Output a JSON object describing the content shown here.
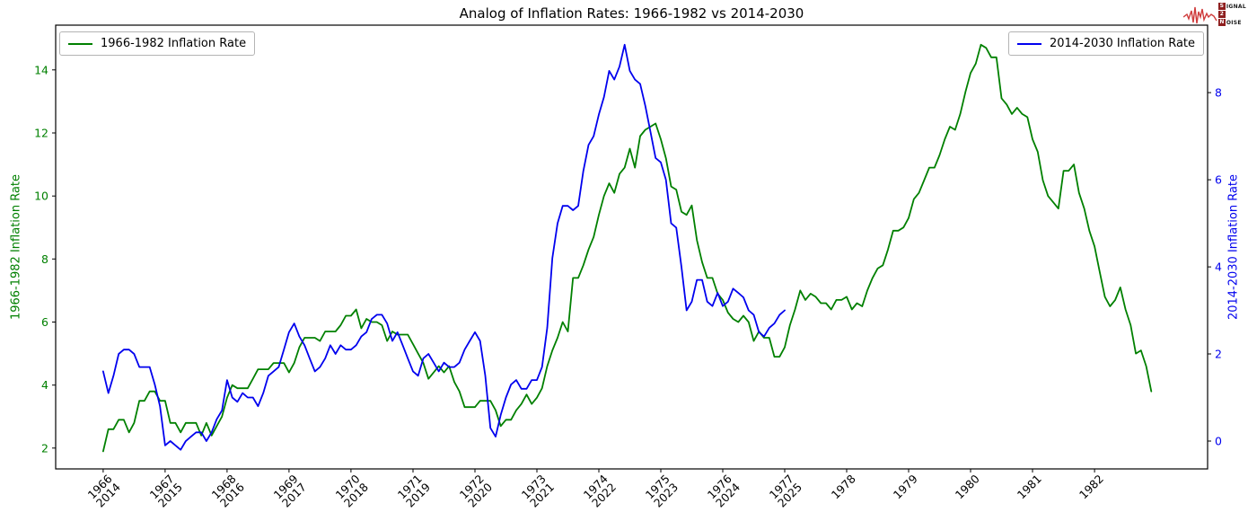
{
  "logo": {
    "text": "SIGNAL 2 NOISE",
    "rows": [
      {
        "initial": "S",
        "rest": "IGNAL"
      },
      {
        "initial": "2",
        "rest": ""
      },
      {
        "initial": "N",
        "rest": "OISE"
      }
    ],
    "wave_color": "#cf3b3b",
    "box_color": "#8e1f1f"
  },
  "chart_data": {
    "type": "line",
    "title": "Analog of Inflation Rates: 1966-1982 vs 2014-2030",
    "grid": false,
    "legend_position": "upper-left and upper-right, framed",
    "x_axis": {
      "min_month": -9.2,
      "max_month": 213.9,
      "tick_labels": [
        [
          "1966",
          "2014"
        ],
        [
          "1967",
          "2015"
        ],
        [
          "1968",
          "2016"
        ],
        [
          "1969",
          "2017"
        ],
        [
          "1970",
          "2018"
        ],
        [
          "1971",
          "2019"
        ],
        [
          "1972",
          "2020"
        ],
        [
          "1973",
          "2021"
        ],
        [
          "1974",
          "2022"
        ],
        [
          "1975",
          "2023"
        ],
        [
          "1976",
          "2024"
        ],
        [
          "1977",
          "2025"
        ],
        [
          "1978"
        ],
        [
          "1979"
        ],
        [
          "1980"
        ],
        [
          "1981"
        ],
        [
          "1982"
        ]
      ]
    },
    "left_axis": {
      "label": "1966-1982 Inflation Rate",
      "color": "#008000",
      "ticks": [
        2,
        4,
        6,
        8,
        10,
        12,
        14
      ],
      "min": 1.34,
      "max": 15.42
    },
    "right_axis": {
      "label": "2014-2030 Inflation Rate",
      "color": "#0000ee",
      "ticks": [
        0,
        2,
        4,
        6,
        8
      ],
      "min": -0.64,
      "max": 9.55
    },
    "series": [
      {
        "name": "1966-1982 Inflation Rate",
        "axis": "left",
        "color": "#008000",
        "start": "1966-01",
        "frequency": "monthly",
        "values": [
          1.9,
          2.6,
          2.6,
          2.9,
          2.9,
          2.5,
          2.8,
          3.5,
          3.5,
          3.8,
          3.8,
          3.5,
          3.5,
          2.8,
          2.8,
          2.5,
          2.8,
          2.8,
          2.8,
          2.4,
          2.8,
          2.4,
          2.7,
          3.0,
          3.6,
          4.0,
          3.9,
          3.9,
          3.9,
          4.2,
          4.5,
          4.5,
          4.5,
          4.7,
          4.7,
          4.7,
          4.4,
          4.7,
          5.2,
          5.5,
          5.5,
          5.5,
          5.4,
          5.7,
          5.7,
          5.7,
          5.9,
          6.2,
          6.2,
          6.4,
          5.8,
          6.1,
          6.0,
          6.0,
          5.9,
          5.4,
          5.7,
          5.6,
          5.6,
          5.6,
          5.3,
          5.0,
          4.7,
          4.2,
          4.4,
          4.6,
          4.4,
          4.6,
          4.1,
          3.8,
          3.3,
          3.3,
          3.3,
          3.5,
          3.5,
          3.5,
          3.2,
          2.7,
          2.9,
          2.9,
          3.2,
          3.4,
          3.7,
          3.4,
          3.6,
          3.9,
          4.6,
          5.1,
          5.5,
          6.0,
          5.7,
          7.4,
          7.4,
          7.8,
          8.3,
          8.7,
          9.4,
          10.0,
          10.4,
          10.1,
          10.7,
          10.9,
          11.5,
          10.9,
          11.9,
          12.1,
          12.2,
          12.3,
          11.8,
          11.2,
          10.3,
          10.2,
          9.5,
          9.4,
          9.7,
          8.6,
          7.9,
          7.4,
          7.4,
          6.9,
          6.7,
          6.3,
          6.1,
          6.0,
          6.2,
          6.0,
          5.4,
          5.7,
          5.5,
          5.5,
          4.9,
          4.9,
          5.2,
          5.9,
          6.4,
          7.0,
          6.7,
          6.9,
          6.8,
          6.6,
          6.6,
          6.4,
          6.7,
          6.7,
          6.8,
          6.4,
          6.6,
          6.5,
          7.0,
          7.4,
          7.7,
          7.8,
          8.3,
          8.9,
          8.9,
          9.0,
          9.3,
          9.9,
          10.1,
          10.5,
          10.9,
          10.9,
          11.3,
          11.8,
          12.2,
          12.1,
          12.6,
          13.3,
          13.9,
          14.2,
          14.8,
          14.7,
          14.4,
          14.4,
          13.1,
          12.9,
          12.6,
          12.8,
          12.6,
          12.5,
          11.8,
          11.4,
          10.5,
          10.0,
          9.8,
          9.6,
          10.8,
          10.8,
          11.0,
          10.1,
          9.6,
          8.9,
          8.4,
          7.6,
          6.8,
          6.5,
          6.7,
          7.1,
          6.4,
          5.9,
          5.0,
          5.1,
          4.6,
          3.8
        ]
      },
      {
        "name": "2014-2030 Inflation Rate",
        "axis": "right",
        "color": "#0000ee",
        "start": "2014-01",
        "frequency": "monthly",
        "values": [
          1.6,
          1.1,
          1.5,
          2.0,
          2.1,
          2.1,
          2.0,
          1.7,
          1.7,
          1.7,
          1.3,
          0.8,
          -0.1,
          0.0,
          -0.1,
          -0.2,
          0.0,
          0.1,
          0.2,
          0.2,
          0.0,
          0.2,
          0.5,
          0.7,
          1.4,
          1.0,
          0.9,
          1.1,
          1.0,
          1.0,
          0.8,
          1.1,
          1.5,
          1.6,
          1.7,
          2.1,
          2.5,
          2.7,
          2.4,
          2.2,
          1.9,
          1.6,
          1.7,
          1.9,
          2.2,
          2.0,
          2.2,
          2.1,
          2.1,
          2.2,
          2.4,
          2.5,
          2.8,
          2.9,
          2.9,
          2.7,
          2.3,
          2.5,
          2.2,
          1.9,
          1.6,
          1.5,
          1.9,
          2.0,
          1.8,
          1.6,
          1.8,
          1.7,
          1.7,
          1.8,
          2.1,
          2.3,
          2.5,
          2.3,
          1.5,
          0.3,
          0.1,
          0.6,
          1.0,
          1.3,
          1.4,
          1.2,
          1.2,
          1.4,
          1.4,
          1.7,
          2.6,
          4.2,
          5.0,
          5.4,
          5.4,
          5.3,
          5.4,
          6.2,
          6.8,
          7.0,
          7.5,
          7.9,
          8.5,
          8.3,
          8.6,
          9.1,
          8.5,
          8.3,
          8.2,
          7.7,
          7.1,
          6.5,
          6.4,
          6.0,
          5.0,
          4.9,
          4.0,
          3.0,
          3.2,
          3.7,
          3.7,
          3.2,
          3.1,
          3.4,
          3.1,
          3.2,
          3.5,
          3.4,
          3.3,
          3.0,
          2.9,
          2.5,
          2.4,
          2.6,
          2.7,
          2.9,
          3.0
        ]
      }
    ]
  }
}
